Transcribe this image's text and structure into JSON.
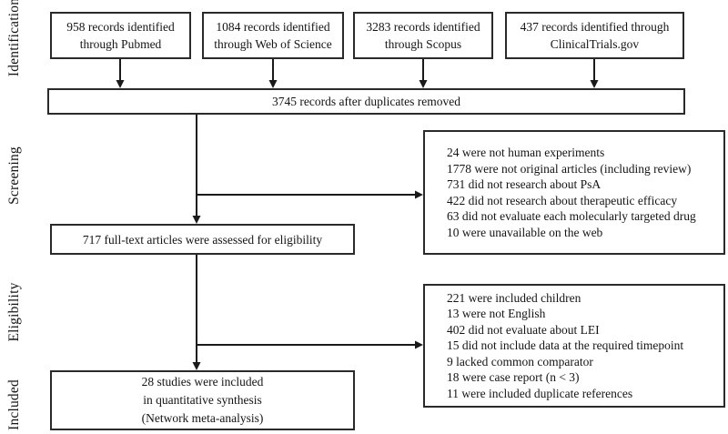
{
  "stages": [
    "Identification",
    "Screening",
    "Eligibility",
    "Included"
  ],
  "sources": [
    "958 records identified\nthrough Pubmed",
    "1084 records identified\nthrough Web of Science",
    "3283 records identified\nthrough Scopus",
    "437 records identified through\nClinicalTrials.gov"
  ],
  "dedup": "3745 records after duplicates removed",
  "screening_exclusions": [
    "24 were not human experiments",
    "1778 were not original articles (including review)",
    "731 did not research about PsA",
    "422 did not research about therapeutic efficacy",
    "63 did not evaluate each molecularly targeted drug",
    "10 were unavailable on the web"
  ],
  "eligibility_assessed": "717 full-text articles were assessed for eligibility",
  "eligibility_exclusions": [
    "221 were included children",
    "13 were not English",
    "402 did not evaluate about LEI",
    "15 did not include data at the required timepoint",
    "9 lacked common comparator",
    "18 were case report (n < 3)",
    "11 were included duplicate references"
  ],
  "included": "28 studies were included\nin quantitative synthesis\n(Network meta-analysis)",
  "colors": {
    "line": "#1a1a1a",
    "border": "#2a2a2a",
    "text": "#141414",
    "background": "#ffffff"
  }
}
